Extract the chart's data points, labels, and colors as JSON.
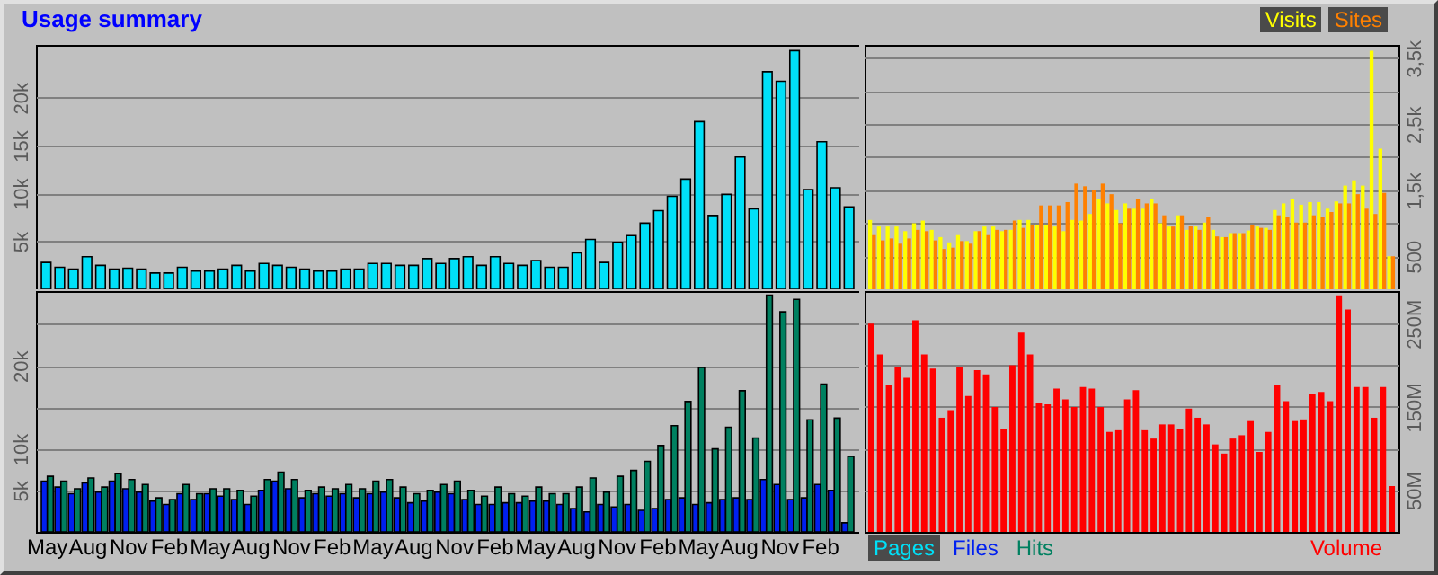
{
  "chart_data": [
    {
      "type": "bar",
      "title": "Usage summary",
      "grid": "y",
      "legend": "bottom",
      "tick_labels": "y",
      "categories": [
        null,
        null,
        null,
        null,
        null,
        null,
        null,
        null,
        null,
        null,
        null,
        null,
        null,
        null,
        null,
        null,
        null,
        null,
        null,
        null,
        null,
        null,
        null,
        null,
        null,
        null,
        null,
        null,
        null,
        null,
        null,
        null,
        null,
        null,
        null,
        null,
        null,
        null,
        null,
        null,
        null,
        null,
        null,
        null,
        null,
        null,
        null,
        null,
        null,
        null,
        null,
        null,
        null,
        null,
        null,
        null,
        null,
        null,
        null,
        null
      ],
      "ylim": [
        0,
        25500
      ],
      "yticks": [
        {
          "value": 5000,
          "label": "5k"
        },
        {
          "value": 10000,
          "label": "10k"
        },
        {
          "value": 15000,
          "label": "15k"
        },
        {
          "value": 20000,
          "label": "20k"
        }
      ],
      "series": [
        {
          "name": "Pages",
          "color": "#00e0f8",
          "values": [
            2800,
            2300,
            2100,
            3400,
            2500,
            2100,
            2200,
            2100,
            1700,
            1700,
            2300,
            1900,
            1900,
            2100,
            2500,
            1900,
            2700,
            2500,
            2300,
            2100,
            1900,
            1900,
            2100,
            2100,
            2700,
            2700,
            2500,
            2500,
            3200,
            2700,
            3200,
            3400,
            2500,
            3400,
            2700,
            2500,
            3000,
            2300,
            2300,
            3800,
            5200,
            2800,
            4900,
            5600,
            6900,
            8200,
            9700,
            11500,
            17500,
            7700,
            9900,
            13800,
            8400,
            22700,
            21700,
            24900,
            10400,
            15400,
            10600,
            8600
          ]
        }
      ]
    },
    {
      "type": "bar",
      "grid": "y",
      "legend": "top right",
      "tick_labels": "y",
      "categories": [
        null,
        null,
        null,
        null,
        null,
        null,
        null,
        null,
        null,
        null,
        null,
        null,
        null,
        null,
        null,
        null,
        null,
        null,
        null,
        null,
        null,
        null,
        null,
        null,
        null,
        null,
        null,
        null,
        null,
        null,
        null,
        null,
        null,
        null,
        null,
        null,
        null,
        null,
        null,
        null,
        null,
        null,
        null,
        null,
        null,
        null,
        null,
        null,
        null,
        null,
        null,
        null,
        null,
        null,
        null,
        null,
        null,
        null,
        null,
        null
      ],
      "ylim": [
        0,
        3700
      ],
      "yticks": [
        {
          "value": 500,
          "label": "500"
        },
        {
          "value": 1000,
          "label": null
        },
        {
          "value": 1500,
          "label": "1,5k"
        },
        {
          "value": 2000,
          "label": null
        },
        {
          "value": 2500,
          "label": "2,5k"
        },
        {
          "value": 3000,
          "label": null
        },
        {
          "value": 3500,
          "label": "3,5k"
        }
      ],
      "series": [
        {
          "name": "Visits",
          "color": "#ffff00",
          "values": [
            1050,
            950,
            950,
            950,
            880,
            1000,
            1040,
            900,
            790,
            710,
            820,
            730,
            880,
            950,
            950,
            880,
            900,
            1050,
            1050,
            980,
            980,
            950,
            880,
            1050,
            1040,
            1140,
            1360,
            1300,
            1200,
            1300,
            1220,
            1220,
            1360,
            1000,
            950,
            1120,
            900,
            950,
            1010,
            900,
            790,
            850,
            850,
            890,
            950,
            930,
            1200,
            1300,
            1360,
            1280,
            1320,
            1320,
            1220,
            1330,
            1570,
            1650,
            1570,
            3610,
            2130,
            500
          ]
        },
        {
          "name": "Sites",
          "color": "#ff8000",
          "values": [
            820,
            740,
            770,
            690,
            770,
            900,
            880,
            740,
            610,
            630,
            730,
            690,
            880,
            820,
            900,
            900,
            1040,
            930,
            980,
            1270,
            1270,
            1270,
            1320,
            1600,
            1560,
            1510,
            1600,
            1440,
            1000,
            1220,
            1360,
            1300,
            1300,
            1120,
            950,
            1120,
            960,
            900,
            1090,
            800,
            790,
            850,
            850,
            980,
            930,
            900,
            1120,
            1090,
            1010,
            1010,
            1120,
            1090,
            1170,
            1300,
            1300,
            1440,
            1220,
            1140,
            1460,
            500
          ]
        }
      ]
    },
    {
      "type": "bar",
      "grid": "y",
      "legend": "bottom",
      "categories": [
        "May",
        null,
        null,
        "Aug",
        null,
        null,
        "Nov",
        null,
        null,
        "Feb",
        null,
        null,
        "May",
        null,
        null,
        "Aug",
        null,
        null,
        "Nov",
        null,
        null,
        "Feb",
        null,
        null,
        "May",
        null,
        null,
        "Aug",
        null,
        null,
        "Nov",
        null,
        null,
        "Feb",
        null,
        null,
        "May",
        null,
        null,
        "Aug",
        null,
        null,
        "Nov",
        null,
        null,
        "Feb",
        null,
        null,
        "May",
        null,
        null,
        "Aug",
        null,
        null,
        "Nov",
        null,
        null,
        "Feb",
        null,
        null
      ],
      "ylim": [
        0,
        29000
      ],
      "yticks": [
        {
          "value": 5000,
          "label": "5k"
        },
        {
          "value": 10000,
          "label": "10k"
        },
        {
          "value": 15000,
          "label": null
        },
        {
          "value": 20000,
          "label": "20k"
        },
        {
          "value": 25000,
          "label": null
        }
      ],
      "series": [
        {
          "name": "Files",
          "color": "#0020f0",
          "values": [
            6100,
            5400,
            4600,
            5900,
            4800,
            6100,
            5200,
            4800,
            3700,
            3300,
            4600,
            3900,
            4600,
            4300,
            3900,
            3300,
            5000,
            6100,
            5200,
            4100,
            4600,
            4300,
            4600,
            4100,
            4600,
            4800,
            4100,
            3500,
            3700,
            4800,
            4600,
            3900,
            3300,
            3300,
            3500,
            3500,
            3700,
            3700,
            3300,
            2800,
            2400,
            3300,
            3000,
            3300,
            2600,
            2800,
            3900,
            4100,
            3300,
            3500,
            3900,
            4100,
            3900,
            6300,
            5700,
            3900,
            4100,
            5700,
            5000,
            1100
          ]
        },
        {
          "name": "Hits",
          "color": "#008060",
          "values": [
            6700,
            6100,
            5200,
            6500,
            5400,
            7000,
            6300,
            5700,
            4100,
            3900,
            5700,
            4600,
            5200,
            5200,
            5000,
            4300,
            6300,
            7200,
            6300,
            5000,
            5400,
            5200,
            5700,
            5200,
            6100,
            6300,
            5400,
            4600,
            5000,
            5700,
            6100,
            5000,
            4300,
            5400,
            4600,
            4300,
            5400,
            4600,
            4600,
            5400,
            6500,
            4800,
            6700,
            7400,
            8500,
            10400,
            12800,
            15700,
            19800,
            10000,
            12600,
            17000,
            11300,
            28500,
            26500,
            28000,
            13500,
            17800,
            13700,
            9100
          ]
        }
      ]
    },
    {
      "type": "bar",
      "grid": "y",
      "legend": "bottom right",
      "tick_labels": "y",
      "categories": [
        null,
        null,
        null,
        null,
        null,
        null,
        null,
        null,
        null,
        null,
        null,
        null,
        null,
        null,
        null,
        null,
        null,
        null,
        null,
        null,
        null,
        null,
        null,
        null,
        null,
        null,
        null,
        null,
        null,
        null,
        null,
        null,
        null,
        null,
        null,
        null,
        null,
        null,
        null,
        null,
        null,
        null,
        null,
        null,
        null,
        null,
        null,
        null,
        null,
        null,
        null,
        null,
        null,
        null,
        null,
        null,
        null,
        null,
        null,
        null
      ],
      "ylim": [
        0,
        289
      ],
      "yticks": [
        {
          "value": 50,
          "label": "50M"
        },
        {
          "value": 100,
          "label": null
        },
        {
          "value": 150,
          "label": "150M"
        },
        {
          "value": 200,
          "label": null
        },
        {
          "value": 250,
          "label": "250M"
        }
      ],
      "series": [
        {
          "name": "Volume",
          "color": "#ff0000",
          "values": [
            250,
            213,
            176,
            198,
            185,
            254,
            213,
            196,
            137,
            146,
            198,
            163,
            194,
            189,
            150,
            124,
            200,
            239,
            213,
            155,
            153,
            172,
            159,
            150,
            174,
            172,
            150,
            120,
            122,
            159,
            170,
            122,
            112,
            129,
            129,
            124,
            148,
            137,
            129,
            105,
            94,
            112,
            116,
            133,
            96,
            120,
            176,
            157,
            133,
            135,
            165,
            168,
            157,
            284,
            267,
            174,
            174,
            137,
            174,
            55
          ]
        }
      ]
    }
  ]
}
